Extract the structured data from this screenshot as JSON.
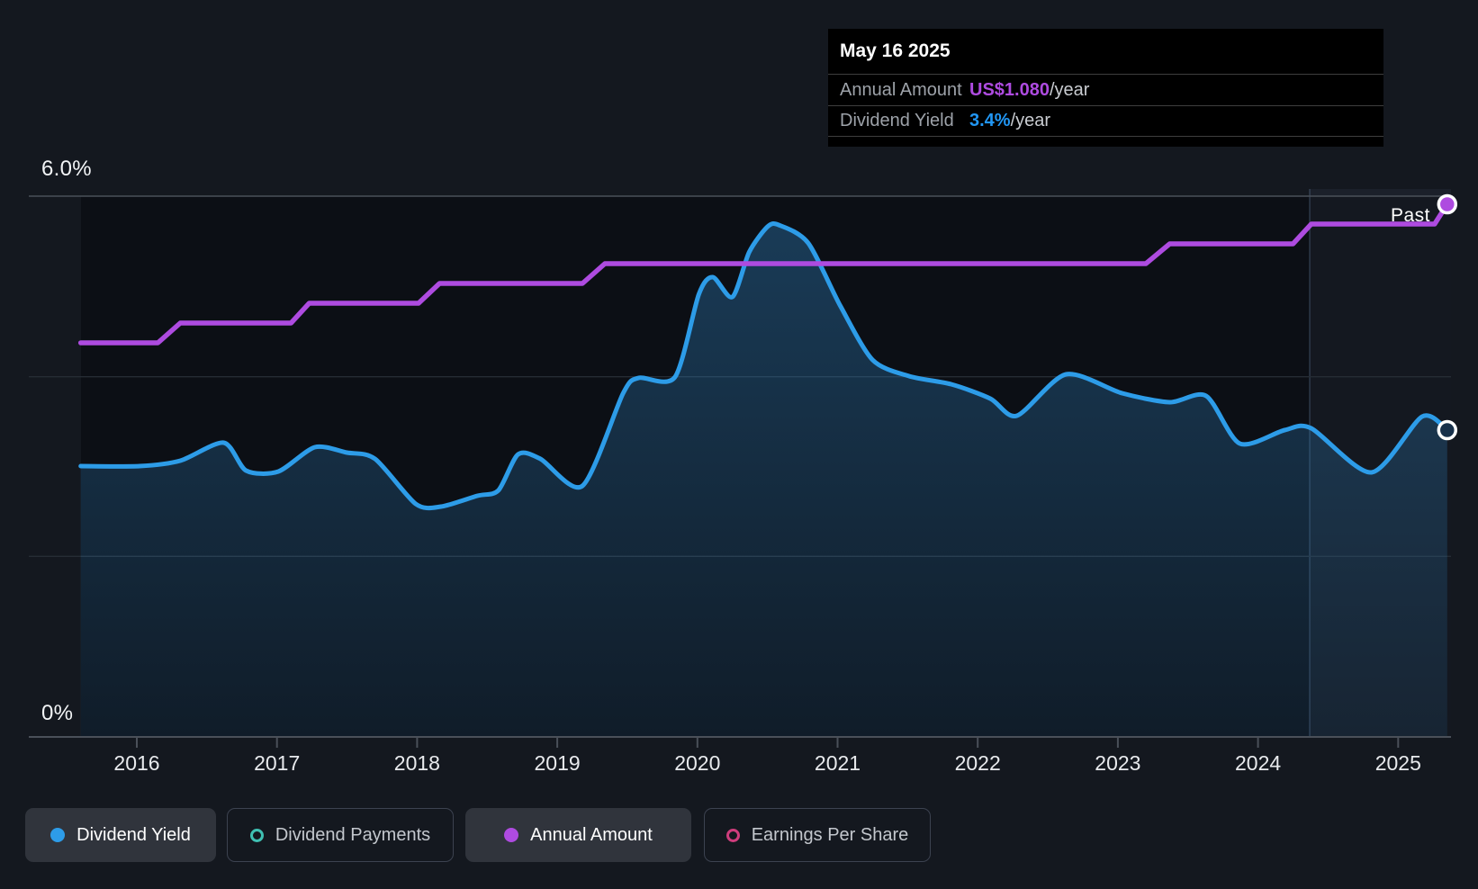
{
  "tooltip": {
    "date": "May 16 2025",
    "rows": [
      {
        "label": "Annual Amount",
        "value": "US$1.080",
        "suffix": "/year",
        "color": "#AE4BE0"
      },
      {
        "label": "Dividend Yield",
        "value": "3.4%",
        "suffix": "/year",
        "color": "#2196F3"
      }
    ]
  },
  "axis": {
    "y_top_label": "6.0%",
    "y_bottom_label": "0%"
  },
  "past_label": "Past",
  "legend": {
    "items": [
      {
        "label": "Dividend Yield",
        "active": true,
        "marker": "filled",
        "color": "#2D9CE8"
      },
      {
        "label": "Dividend Payments",
        "active": false,
        "marker": "hollow",
        "color": "#3FBFB2"
      },
      {
        "label": "Annual Amount",
        "active": true,
        "marker": "filled",
        "color": "#AE4BE0"
      },
      {
        "label": "Earnings Per Share",
        "active": false,
        "marker": "hollow",
        "color": "#CE3D7C"
      }
    ]
  },
  "colors": {
    "background": "#14181F",
    "plot_background": "#0C0F15",
    "dividend_yield_line": "#2D9CE8",
    "annual_amount_line": "#AE4BE0",
    "grid_strong": "#4A5059",
    "grid_faint": "#262C34",
    "tooltip_background": "#000000"
  },
  "chart_data": {
    "type": "line",
    "title": "",
    "x_axis": {
      "ticks": [
        "2016",
        "2017",
        "2018",
        "2019",
        "2020",
        "2021",
        "2022",
        "2023",
        "2024",
        "2025"
      ],
      "range_years": [
        2015.6,
        2025.37
      ]
    },
    "y_axis": {
      "unit": "%",
      "range": [
        0,
        6
      ],
      "gridlines_pct": [
        0,
        2,
        4,
        6
      ],
      "top_label": "6.0%",
      "bottom_label": "0%"
    },
    "legend_position": "bottom",
    "annotations": {
      "past_label": "Past",
      "last_12m_band_start_year": 2024.37,
      "hover_date": "May 16 2025"
    },
    "series": [
      {
        "name": "Dividend Yield",
        "unit": "%",
        "color": "#2D9CE8",
        "style": "line-with-area",
        "end_value": 3.4,
        "points": [
          [
            2015.6,
            3.0
          ],
          [
            2016.02,
            3.0
          ],
          [
            2016.31,
            3.06
          ],
          [
            2016.62,
            3.26
          ],
          [
            2016.78,
            2.95
          ],
          [
            2017.01,
            2.94
          ],
          [
            2017.27,
            3.21
          ],
          [
            2017.5,
            3.15
          ],
          [
            2017.7,
            3.08
          ],
          [
            2017.99,
            2.58
          ],
          [
            2018.17,
            2.55
          ],
          [
            2018.43,
            2.67
          ],
          [
            2018.58,
            2.73
          ],
          [
            2018.72,
            3.13
          ],
          [
            2018.88,
            3.08
          ],
          [
            2019.18,
            2.78
          ],
          [
            2019.47,
            3.81
          ],
          [
            2019.58,
            3.98
          ],
          [
            2019.84,
            3.99
          ],
          [
            2020.01,
            4.91
          ],
          [
            2020.11,
            5.1
          ],
          [
            2020.25,
            4.88
          ],
          [
            2020.37,
            5.38
          ],
          [
            2020.5,
            5.66
          ],
          [
            2020.58,
            5.68
          ],
          [
            2020.79,
            5.48
          ],
          [
            2021.02,
            4.78
          ],
          [
            2021.25,
            4.18
          ],
          [
            2021.51,
            4.0
          ],
          [
            2021.81,
            3.91
          ],
          [
            2022.09,
            3.75
          ],
          [
            2022.28,
            3.56
          ],
          [
            2022.63,
            4.02
          ],
          [
            2023.03,
            3.81
          ],
          [
            2023.37,
            3.71
          ],
          [
            2023.63,
            3.78
          ],
          [
            2023.87,
            3.25
          ],
          [
            2024.19,
            3.4
          ],
          [
            2024.38,
            3.42
          ],
          [
            2024.81,
            2.93
          ],
          [
            2025.17,
            3.55
          ],
          [
            2025.35,
            3.4
          ]
        ]
      },
      {
        "name": "Annual Amount",
        "unit": "US$/year",
        "color": "#AE4BE0",
        "style": "step-line",
        "end_value": 1.08,
        "points": [
          [
            2015.6,
            0.8
          ],
          [
            2016.15,
            0.8
          ],
          [
            2016.31,
            0.84
          ],
          [
            2017.1,
            0.84
          ],
          [
            2017.23,
            0.88
          ],
          [
            2018.01,
            0.88
          ],
          [
            2018.16,
            0.92
          ],
          [
            2019.18,
            0.92
          ],
          [
            2019.34,
            0.96
          ],
          [
            2023.2,
            0.96
          ],
          [
            2023.37,
            1.0
          ],
          [
            2024.25,
            1.0
          ],
          [
            2024.38,
            1.04
          ],
          [
            2025.26,
            1.04
          ],
          [
            2025.35,
            1.08
          ]
        ]
      },
      {
        "name": "Dividend Payments",
        "color": "#3FBFB2",
        "style": "hidden",
        "points": []
      },
      {
        "name": "Earnings Per Share",
        "color": "#CE3D7C",
        "style": "hidden",
        "points": []
      }
    ]
  }
}
